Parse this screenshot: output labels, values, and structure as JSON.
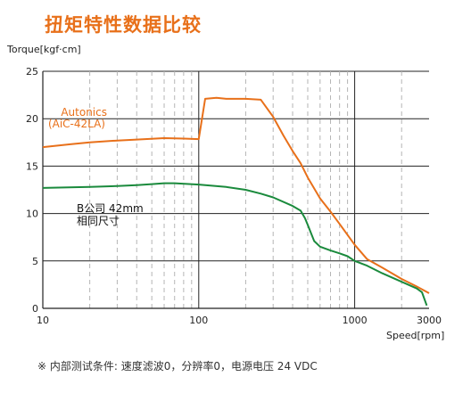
{
  "title": "扭矩特性数据比较",
  "footnote": "※ 内部测试条件: 速度滤波0，分辨率0，电源电压 24 VDC",
  "chart_data": {
    "type": "line",
    "xscale": "log",
    "xlim": [
      10,
      3000
    ],
    "ylim": [
      0,
      25
    ],
    "ylabel": "Torque[kgf·cm]",
    "xlabel": "Speed[rpm]",
    "yticks": [
      0,
      5,
      10,
      15,
      20,
      25
    ],
    "xticks": [
      10,
      100,
      1000,
      3000
    ],
    "xtick_labels": [
      "10",
      "100",
      "1000",
      "3000"
    ],
    "major_gridlines_x": [
      10,
      100,
      1000
    ],
    "minor_gridlines_x": [
      20,
      30,
      40,
      50,
      60,
      70,
      80,
      90,
      200,
      300,
      400,
      500,
      600,
      700,
      800,
      900,
      2000
    ],
    "grid": true,
    "series": [
      {
        "name": "Autonics (AiC-42LA)",
        "label_lines": [
          "Autonics",
          "(AiC-42LA)"
        ],
        "color": "#e8701a",
        "x": [
          10,
          15,
          20,
          30,
          40,
          60,
          80,
          100,
          110,
          130,
          150,
          200,
          250,
          300,
          350,
          400,
          450,
          500,
          600,
          700,
          800,
          1000,
          1200,
          1500,
          2000,
          2500,
          3000
        ],
        "y": [
          17.0,
          17.3,
          17.5,
          17.7,
          17.8,
          17.95,
          17.9,
          17.85,
          22.1,
          22.2,
          22.1,
          22.1,
          22.0,
          20.2,
          18.2,
          16.6,
          15.3,
          13.8,
          11.6,
          10.2,
          8.9,
          6.7,
          5.2,
          4.3,
          3.1,
          2.3,
          1.6
        ]
      },
      {
        "name": "B公司 42mm 相同尺寸",
        "label_lines": [
          "B公司 42mm",
          "相同尺寸"
        ],
        "color": "#1a8a3c",
        "x": [
          10,
          20,
          30,
          40,
          50,
          60,
          70,
          100,
          150,
          200,
          250,
          300,
          400,
          450,
          480,
          500,
          550,
          600,
          700,
          800,
          900,
          1000,
          1200,
          1500,
          2000,
          2500,
          2700,
          2900
        ],
        "y": [
          12.7,
          12.8,
          12.9,
          13.0,
          13.1,
          13.2,
          13.2,
          13.05,
          12.8,
          12.5,
          12.1,
          11.7,
          10.8,
          10.3,
          9.5,
          8.8,
          7.1,
          6.5,
          6.1,
          5.8,
          5.5,
          5.0,
          4.5,
          3.7,
          2.8,
          2.1,
          1.7,
          0.3
        ]
      }
    ]
  }
}
